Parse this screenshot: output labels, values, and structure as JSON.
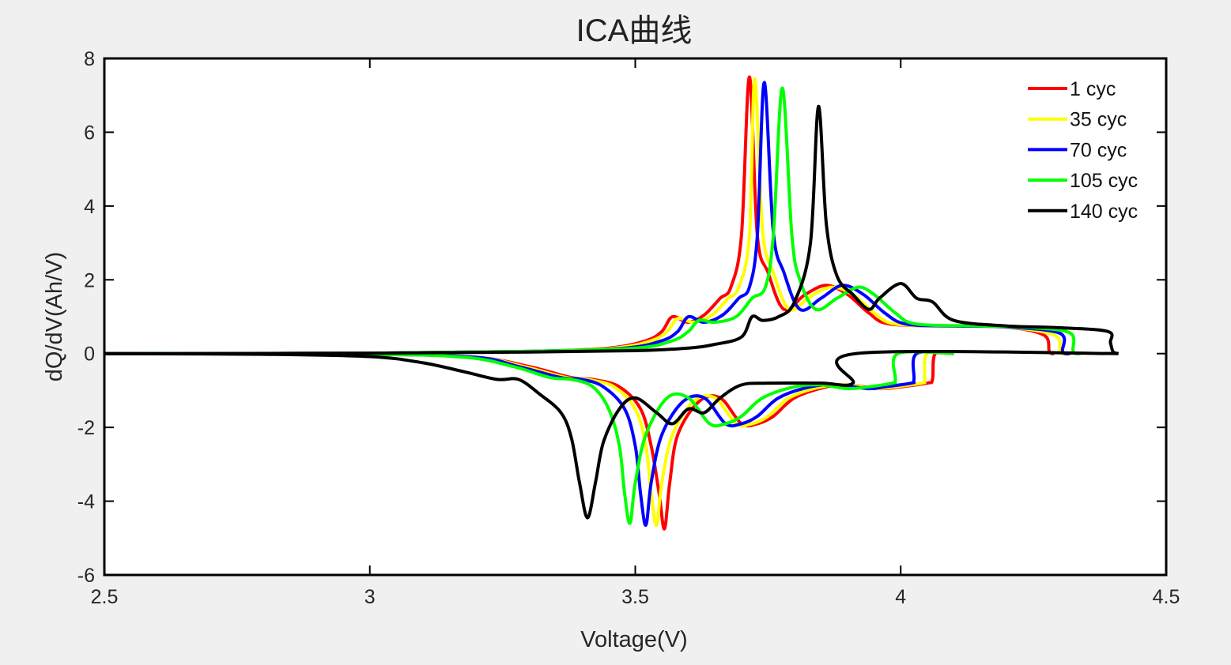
{
  "chart_data": {
    "type": "line",
    "title": "ICA曲线",
    "xlabel": "Voltage(V)",
    "ylabel": "dQ/dV(Ah/V)",
    "xlim": [
      2.5,
      4.5
    ],
    "ylim": [
      -6,
      8
    ],
    "xticks": [
      2.5,
      3,
      3.5,
      4,
      4.5
    ],
    "xtick_labels": [
      "2.5",
      "3",
      "3.5",
      "4",
      "4.5"
    ],
    "yticks": [
      -6,
      -4,
      -2,
      0,
      2,
      4,
      6,
      8
    ],
    "ytick_labels": [
      "-6",
      "-4",
      "-2",
      "0",
      "2",
      "4",
      "6",
      "8"
    ],
    "grid": false,
    "legend_position": "top-right",
    "series": [
      {
        "name": "1 cyc",
        "color": "#ff0000",
        "charge": [
          [
            2.5,
            0
          ],
          [
            3.0,
            0.01
          ],
          [
            3.3,
            0.06
          ],
          [
            3.45,
            0.15
          ],
          [
            3.52,
            0.35
          ],
          [
            3.55,
            0.6
          ],
          [
            3.57,
            1.0
          ],
          [
            3.6,
            0.85
          ],
          [
            3.63,
            1.05
          ],
          [
            3.66,
            1.5
          ],
          [
            3.68,
            1.8
          ],
          [
            3.7,
            3.2
          ],
          [
            3.715,
            7.5
          ],
          [
            3.73,
            3.2
          ],
          [
            3.75,
            2.2
          ],
          [
            3.78,
            1.2
          ],
          [
            3.82,
            1.6
          ],
          [
            3.86,
            1.85
          ],
          [
            3.9,
            1.6
          ],
          [
            3.94,
            1.1
          ],
          [
            3.98,
            0.8
          ],
          [
            4.1,
            0.75
          ],
          [
            4.2,
            0.72
          ],
          [
            4.27,
            0.5
          ],
          [
            4.28,
            0.05
          ],
          [
            4.29,
            0
          ]
        ],
        "discharge": [
          [
            2.5,
            0
          ],
          [
            3.0,
            -0.02
          ],
          [
            3.2,
            -0.1
          ],
          [
            3.3,
            -0.35
          ],
          [
            3.38,
            -0.65
          ],
          [
            3.42,
            -0.7
          ],
          [
            3.47,
            -0.9
          ],
          [
            3.51,
            -1.5
          ],
          [
            3.53,
            -2.5
          ],
          [
            3.545,
            -3.8
          ],
          [
            3.555,
            -4.75
          ],
          [
            3.565,
            -3.5
          ],
          [
            3.58,
            -2.2
          ],
          [
            3.62,
            -1.3
          ],
          [
            3.66,
            -1.2
          ],
          [
            3.7,
            -1.9
          ],
          [
            3.73,
            -1.9
          ],
          [
            3.76,
            -1.7
          ],
          [
            3.8,
            -1.2
          ],
          [
            3.86,
            -0.9
          ],
          [
            3.9,
            -0.85
          ],
          [
            3.96,
            -0.95
          ],
          [
            4.0,
            -0.9
          ],
          [
            4.05,
            -0.8
          ],
          [
            4.06,
            -0.7
          ],
          [
            4.065,
            0
          ],
          [
            4.1,
            0
          ]
        ]
      },
      {
        "name": "35 cyc",
        "color": "#ffff00",
        "charge": [
          [
            2.5,
            0
          ],
          [
            3.0,
            0.01
          ],
          [
            3.3,
            0.06
          ],
          [
            3.46,
            0.15
          ],
          [
            3.53,
            0.35
          ],
          [
            3.56,
            0.6
          ],
          [
            3.58,
            0.95
          ],
          [
            3.61,
            0.85
          ],
          [
            3.645,
            1.05
          ],
          [
            3.675,
            1.5
          ],
          [
            3.695,
            1.8
          ],
          [
            3.715,
            3.2
          ],
          [
            3.725,
            7.45
          ],
          [
            3.74,
            3.3
          ],
          [
            3.76,
            2.2
          ],
          [
            3.79,
            1.2
          ],
          [
            3.83,
            1.55
          ],
          [
            3.87,
            1.8
          ],
          [
            3.91,
            1.6
          ],
          [
            3.95,
            1.1
          ],
          [
            3.99,
            0.8
          ],
          [
            4.1,
            0.75
          ],
          [
            4.2,
            0.72
          ],
          [
            4.29,
            0.5
          ],
          [
            4.3,
            0.05
          ],
          [
            4.31,
            0
          ]
        ],
        "discharge": [
          [
            2.5,
            0
          ],
          [
            3.0,
            -0.02
          ],
          [
            3.2,
            -0.1
          ],
          [
            3.29,
            -0.35
          ],
          [
            3.37,
            -0.65
          ],
          [
            3.41,
            -0.7
          ],
          [
            3.46,
            -0.9
          ],
          [
            3.5,
            -1.5
          ],
          [
            3.52,
            -2.5
          ],
          [
            3.53,
            -3.8
          ],
          [
            3.54,
            -4.65
          ],
          [
            3.55,
            -3.5
          ],
          [
            3.57,
            -2.2
          ],
          [
            3.61,
            -1.3
          ],
          [
            3.65,
            -1.2
          ],
          [
            3.69,
            -1.9
          ],
          [
            3.72,
            -1.9
          ],
          [
            3.75,
            -1.7
          ],
          [
            3.79,
            -1.2
          ],
          [
            3.85,
            -0.9
          ],
          [
            3.9,
            -0.85
          ],
          [
            3.95,
            -0.95
          ],
          [
            3.99,
            -0.9
          ],
          [
            4.04,
            -0.8
          ],
          [
            4.045,
            -0.7
          ],
          [
            4.05,
            0
          ],
          [
            4.1,
            0
          ]
        ]
      },
      {
        "name": "70 cyc",
        "color": "#0000ff",
        "charge": [
          [
            2.5,
            0
          ],
          [
            3.0,
            0.01
          ],
          [
            3.3,
            0.06
          ],
          [
            3.48,
            0.15
          ],
          [
            3.55,
            0.35
          ],
          [
            3.58,
            0.6
          ],
          [
            3.6,
            1.0
          ],
          [
            3.63,
            0.85
          ],
          [
            3.665,
            1.05
          ],
          [
            3.695,
            1.5
          ],
          [
            3.715,
            1.8
          ],
          [
            3.73,
            3.2
          ],
          [
            3.743,
            7.35
          ],
          [
            3.76,
            3.3
          ],
          [
            3.78,
            2.2
          ],
          [
            3.81,
            1.2
          ],
          [
            3.85,
            1.5
          ],
          [
            3.89,
            1.85
          ],
          [
            3.93,
            1.6
          ],
          [
            3.97,
            1.1
          ],
          [
            4.01,
            0.8
          ],
          [
            4.1,
            0.75
          ],
          [
            4.2,
            0.72
          ],
          [
            4.3,
            0.55
          ],
          [
            4.305,
            0.05
          ],
          [
            4.32,
            0
          ]
        ],
        "discharge": [
          [
            2.5,
            0
          ],
          [
            3.0,
            -0.02
          ],
          [
            3.2,
            -0.1
          ],
          [
            3.28,
            -0.35
          ],
          [
            3.36,
            -0.65
          ],
          [
            3.4,
            -0.7
          ],
          [
            3.44,
            -0.9
          ],
          [
            3.48,
            -1.5
          ],
          [
            3.5,
            -2.5
          ],
          [
            3.51,
            -3.8
          ],
          [
            3.52,
            -4.65
          ],
          [
            3.53,
            -3.5
          ],
          [
            3.55,
            -2.2
          ],
          [
            3.59,
            -1.3
          ],
          [
            3.63,
            -1.2
          ],
          [
            3.67,
            -1.9
          ],
          [
            3.7,
            -1.9
          ],
          [
            3.73,
            -1.7
          ],
          [
            3.77,
            -1.2
          ],
          [
            3.83,
            -0.9
          ],
          [
            3.88,
            -0.85
          ],
          [
            3.94,
            -0.95
          ],
          [
            3.97,
            -0.9
          ],
          [
            4.02,
            -0.8
          ],
          [
            4.025,
            -0.7
          ],
          [
            4.03,
            0
          ],
          [
            4.1,
            0
          ]
        ]
      },
      {
        "name": "105 cyc",
        "color": "#00ff00",
        "charge": [
          [
            2.5,
            0
          ],
          [
            3.0,
            0.01
          ],
          [
            3.3,
            0.06
          ],
          [
            3.5,
            0.15
          ],
          [
            3.57,
            0.35
          ],
          [
            3.6,
            0.6
          ],
          [
            3.62,
            0.9
          ],
          [
            3.65,
            0.85
          ],
          [
            3.69,
            1.0
          ],
          [
            3.72,
            1.5
          ],
          [
            3.745,
            1.8
          ],
          [
            3.76,
            3.2
          ],
          [
            3.777,
            7.2
          ],
          [
            3.795,
            3.2
          ],
          [
            3.81,
            2.0
          ],
          [
            3.84,
            1.2
          ],
          [
            3.88,
            1.5
          ],
          [
            3.92,
            1.8
          ],
          [
            3.95,
            1.6
          ],
          [
            3.99,
            1.1
          ],
          [
            4.03,
            0.8
          ],
          [
            4.15,
            0.75
          ],
          [
            4.25,
            0.7
          ],
          [
            4.32,
            0.55
          ],
          [
            4.325,
            0.05
          ],
          [
            4.34,
            0
          ]
        ],
        "discharge": [
          [
            2.5,
            0
          ],
          [
            3.0,
            -0.02
          ],
          [
            3.18,
            -0.1
          ],
          [
            3.27,
            -0.35
          ],
          [
            3.34,
            -0.65
          ],
          [
            3.38,
            -0.7
          ],
          [
            3.42,
            -0.9
          ],
          [
            3.45,
            -1.5
          ],
          [
            3.47,
            -2.5
          ],
          [
            3.48,
            -3.8
          ],
          [
            3.49,
            -4.6
          ],
          [
            3.5,
            -3.5
          ],
          [
            3.52,
            -2.2
          ],
          [
            3.56,
            -1.2
          ],
          [
            3.6,
            -1.2
          ],
          [
            3.64,
            -1.9
          ],
          [
            3.67,
            -1.9
          ],
          [
            3.7,
            -1.7
          ],
          [
            3.74,
            -1.2
          ],
          [
            3.8,
            -0.9
          ],
          [
            3.85,
            -0.85
          ],
          [
            3.9,
            -0.95
          ],
          [
            3.94,
            -0.9
          ],
          [
            3.985,
            -0.8
          ],
          [
            3.99,
            -0.7
          ],
          [
            3.995,
            0
          ],
          [
            4.1,
            0
          ]
        ]
      },
      {
        "name": "140 cyc",
        "color": "#000000",
        "charge": [
          [
            2.5,
            0
          ],
          [
            3.0,
            0.01
          ],
          [
            3.3,
            0.04
          ],
          [
            3.5,
            0.08
          ],
          [
            3.6,
            0.15
          ],
          [
            3.65,
            0.25
          ],
          [
            3.7,
            0.45
          ],
          [
            3.72,
            1.0
          ],
          [
            3.74,
            0.9
          ],
          [
            3.77,
            1.0
          ],
          [
            3.8,
            1.4
          ],
          [
            3.83,
            3.0
          ],
          [
            3.845,
            6.7
          ],
          [
            3.86,
            3.5
          ],
          [
            3.88,
            2.1
          ],
          [
            3.91,
            1.6
          ],
          [
            3.94,
            1.2
          ],
          [
            3.96,
            1.5
          ],
          [
            4.0,
            1.9
          ],
          [
            4.03,
            1.5
          ],
          [
            4.06,
            1.4
          ],
          [
            4.1,
            0.9
          ],
          [
            4.2,
            0.75
          ],
          [
            4.3,
            0.7
          ],
          [
            4.39,
            0.6
          ],
          [
            4.395,
            0.3
          ],
          [
            4.4,
            0.05
          ],
          [
            4.41,
            0
          ]
        ],
        "discharge": [
          [
            2.5,
            0
          ],
          [
            2.8,
            -0.02
          ],
          [
            3.0,
            -0.08
          ],
          [
            3.1,
            -0.25
          ],
          [
            3.18,
            -0.5
          ],
          [
            3.24,
            -0.7
          ],
          [
            3.28,
            -0.7
          ],
          [
            3.32,
            -1.1
          ],
          [
            3.36,
            -1.6
          ],
          [
            3.38,
            -2.3
          ],
          [
            3.395,
            -3.5
          ],
          [
            3.41,
            -4.45
          ],
          [
            3.425,
            -3.5
          ],
          [
            3.44,
            -2.4
          ],
          [
            3.47,
            -1.5
          ],
          [
            3.5,
            -1.2
          ],
          [
            3.54,
            -1.6
          ],
          [
            3.57,
            -1.9
          ],
          [
            3.6,
            -1.5
          ],
          [
            3.63,
            -1.6
          ],
          [
            3.66,
            -1.2
          ],
          [
            3.7,
            -0.85
          ],
          [
            3.75,
            -0.8
          ],
          [
            3.85,
            -0.8
          ],
          [
            3.91,
            -0.8
          ],
          [
            3.915,
            0
          ],
          [
            4.41,
            0
          ]
        ]
      }
    ]
  }
}
